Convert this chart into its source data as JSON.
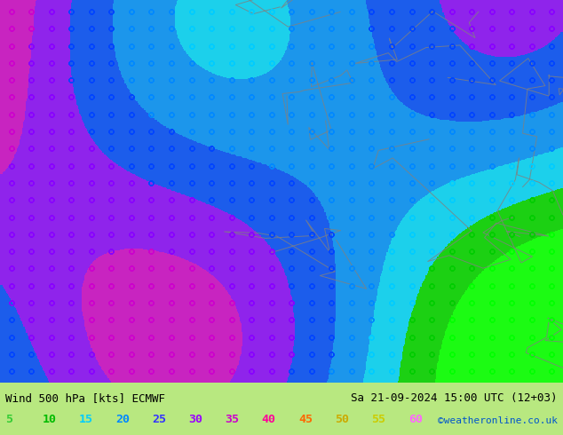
{
  "title_left": "Wind 500 hPa [kts] ECMWF",
  "title_right": "Sa 21-09-2024 15:00 UTC (12+03)",
  "credit": "©weatheronline.co.uk",
  "legend_values": [
    5,
    10,
    15,
    20,
    25,
    30,
    35,
    40,
    45,
    50,
    55,
    60
  ],
  "legend_colors": [
    "#00ff00",
    "#00dd00",
    "#00ccff",
    "#0088ff",
    "#0044ff",
    "#8800ff",
    "#cc00cc",
    "#ff00aa",
    "#ff6600",
    "#ffcc00",
    "#ffff00",
    "#ffffff"
  ],
  "bg_color": "#d4f0a0",
  "map_bg": "#c8c8c8",
  "wind_color_stops": [
    [
      5,
      "#00ff00"
    ],
    [
      10,
      "#00cc00"
    ],
    [
      15,
      "#00ccff"
    ],
    [
      20,
      "#0088ff"
    ],
    [
      25,
      "#0044ff"
    ],
    [
      30,
      "#8800ff"
    ],
    [
      35,
      "#cc00cc"
    ],
    [
      40,
      "#ff00aa"
    ],
    [
      45,
      "#ff6600"
    ],
    [
      50,
      "#ffcc00"
    ],
    [
      55,
      "#ffff00"
    ],
    [
      60,
      "#ffffff"
    ]
  ],
  "figsize": [
    6.34,
    4.9
  ],
  "dpi": 100
}
